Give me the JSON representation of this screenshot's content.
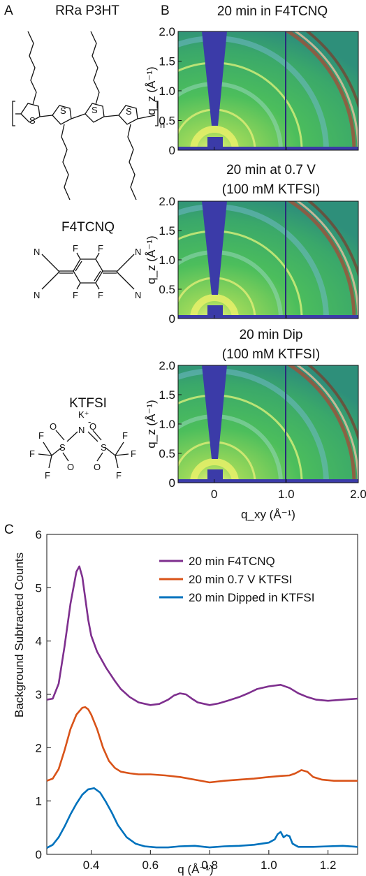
{
  "panel_a": {
    "letter": "A",
    "molecules": [
      {
        "name": "RRa P3HT",
        "atoms": {
          "sulfur": "S",
          "repeat": "n"
        }
      },
      {
        "name": "F4TCNQ",
        "atoms": {
          "fluorine": "F",
          "nitrogen": "N"
        }
      },
      {
        "name": "KTFSI",
        "atoms": {
          "cation": "K⁺",
          "anion_charge": "-",
          "nitrogen": "N",
          "sulfur": "S",
          "oxygen": "O",
          "fluorine": "F"
        }
      }
    ]
  },
  "panel_b": {
    "letter": "B",
    "xlabel": "q_xy (Å⁻¹)",
    "ylabel": "q_z (Å⁻¹)",
    "x_ticks": [
      "0",
      "1.0",
      "2.0"
    ],
    "y_ticks": [
      "0",
      "0.5",
      "1.0",
      "1.5",
      "2.0"
    ],
    "xlim": [
      -0.5,
      2.0
    ],
    "ylim": [
      0,
      2.0
    ],
    "images": [
      {
        "title": [
          "20 min in F4TCNQ"
        ]
      },
      {
        "title": [
          "20 min at 0.7 V",
          "(100 mM KTFSI)"
        ]
      },
      {
        "title": [
          "20 min Dip",
          "(100 mM KTFSI)"
        ]
      }
    ]
  },
  "chart_data": {
    "type": "line",
    "panel_letter": "C",
    "xlabel": "q (Å⁻¹)",
    "ylabel": "Background Subtracted Counts",
    "xlim": [
      0.25,
      1.3
    ],
    "ylim": [
      0,
      6
    ],
    "x_ticks": [
      "0.4",
      "0.6",
      "0.8",
      "1.0",
      "1.2"
    ],
    "y_ticks": [
      "0",
      "1",
      "2",
      "3",
      "4",
      "5",
      "6"
    ],
    "legend_position": "top-right",
    "grid": false,
    "series": [
      {
        "name": "20 min F4TCNQ",
        "color": "#7e2f8e",
        "x": [
          0.25,
          0.27,
          0.29,
          0.31,
          0.33,
          0.35,
          0.36,
          0.37,
          0.38,
          0.39,
          0.4,
          0.42,
          0.45,
          0.48,
          0.5,
          0.53,
          0.56,
          0.6,
          0.63,
          0.66,
          0.68,
          0.7,
          0.72,
          0.74,
          0.76,
          0.8,
          0.83,
          0.86,
          0.9,
          0.93,
          0.96,
          1.0,
          1.04,
          1.07,
          1.1,
          1.13,
          1.16,
          1.2,
          1.25,
          1.3
        ],
        "y": [
          2.9,
          2.92,
          3.2,
          3.9,
          4.7,
          5.3,
          5.4,
          5.2,
          4.8,
          4.4,
          4.1,
          3.8,
          3.5,
          3.25,
          3.1,
          2.95,
          2.85,
          2.8,
          2.82,
          2.9,
          2.98,
          3.02,
          3.0,
          2.92,
          2.85,
          2.8,
          2.83,
          2.88,
          2.95,
          3.02,
          3.1,
          3.15,
          3.18,
          3.12,
          3.02,
          2.95,
          2.9,
          2.88,
          2.9,
          2.92
        ]
      },
      {
        "name": "20 min 0.7 V KTFSI",
        "color": "#d95319",
        "x": [
          0.25,
          0.27,
          0.29,
          0.31,
          0.33,
          0.35,
          0.37,
          0.38,
          0.39,
          0.4,
          0.42,
          0.44,
          0.46,
          0.48,
          0.5,
          0.53,
          0.56,
          0.6,
          0.65,
          0.7,
          0.75,
          0.8,
          0.85,
          0.9,
          0.95,
          1.0,
          1.04,
          1.07,
          1.09,
          1.11,
          1.13,
          1.15,
          1.18,
          1.22,
          1.26,
          1.3
        ],
        "y": [
          1.38,
          1.42,
          1.6,
          1.95,
          2.35,
          2.62,
          2.75,
          2.76,
          2.72,
          2.62,
          2.35,
          2.0,
          1.75,
          1.62,
          1.55,
          1.52,
          1.5,
          1.5,
          1.48,
          1.45,
          1.4,
          1.35,
          1.38,
          1.4,
          1.42,
          1.45,
          1.47,
          1.48,
          1.52,
          1.58,
          1.55,
          1.45,
          1.4,
          1.38,
          1.38,
          1.38
        ]
      },
      {
        "name": "20 min Dipped in KTFSI",
        "color": "#0072bd",
        "x": [
          0.25,
          0.27,
          0.29,
          0.31,
          0.33,
          0.35,
          0.37,
          0.39,
          0.41,
          0.43,
          0.45,
          0.47,
          0.49,
          0.52,
          0.55,
          0.58,
          0.62,
          0.66,
          0.7,
          0.75,
          0.8,
          0.85,
          0.9,
          0.95,
          1.0,
          1.02,
          1.03,
          1.04,
          1.05,
          1.06,
          1.07,
          1.08,
          1.1,
          1.15,
          1.2,
          1.25,
          1.3
        ],
        "y": [
          0.12,
          0.18,
          0.32,
          0.52,
          0.75,
          0.95,
          1.12,
          1.22,
          1.24,
          1.16,
          0.98,
          0.78,
          0.55,
          0.32,
          0.2,
          0.15,
          0.13,
          0.13,
          0.15,
          0.16,
          0.13,
          0.15,
          0.16,
          0.18,
          0.22,
          0.28,
          0.38,
          0.42,
          0.32,
          0.36,
          0.34,
          0.2,
          0.14,
          0.14,
          0.15,
          0.16,
          0.14
        ]
      }
    ]
  }
}
